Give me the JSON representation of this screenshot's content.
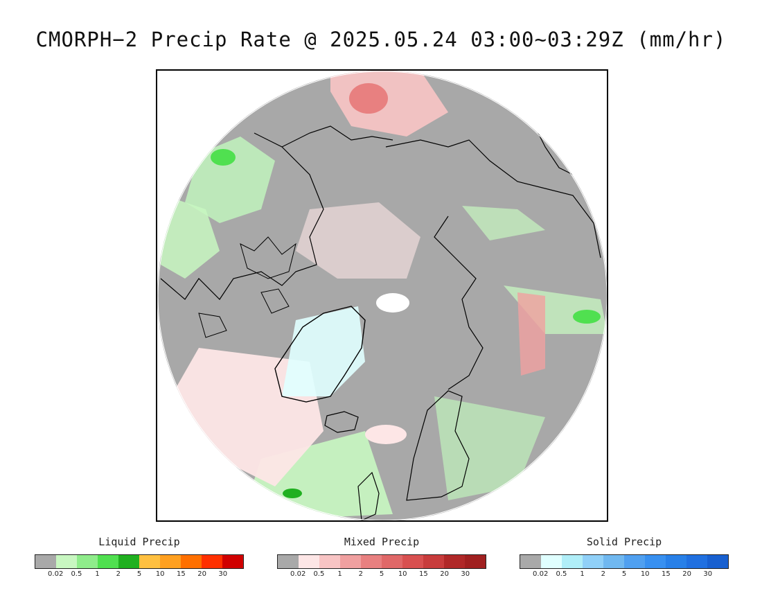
{
  "title": "CMORPH−2 Precip Rate @ 2025.05.24 03:00~03:29Z (mm/hr)",
  "map": {
    "projection": "north polar stereographic",
    "background_color": "#a8a8a8",
    "coastline_color": "#000000"
  },
  "legends": [
    {
      "title": "Liquid Precip",
      "colors": [
        "#a9a9a9",
        "#c8f7c1",
        "#8fec8b",
        "#50e050",
        "#20b020",
        "#ffc040",
        "#ffa020",
        "#ff7000",
        "#ff3000",
        "#d00000"
      ],
      "ticks": [
        "0.02",
        "0.5",
        "1",
        "2",
        "5",
        "10",
        "15",
        "20",
        "30"
      ]
    },
    {
      "title": "Mixed Precip",
      "colors": [
        "#a9a9a9",
        "#fde6e6",
        "#f8c4c4",
        "#f0a0a0",
        "#e88080",
        "#e06868",
        "#d85050",
        "#c83c3c",
        "#b02828",
        "#a02020"
      ],
      "ticks": [
        "0.02",
        "0.5",
        "1",
        "2",
        "5",
        "10",
        "15",
        "20",
        "30"
      ]
    },
    {
      "title": "Solid Precip",
      "colors": [
        "#a9a9a9",
        "#e0ffff",
        "#b0eef8",
        "#90d0f8",
        "#70b8f0",
        "#50a0f0",
        "#3890f0",
        "#2880e8",
        "#2070e0",
        "#1860d0"
      ],
      "ticks": [
        "0.02",
        "0.5",
        "1",
        "2",
        "5",
        "10",
        "15",
        "20",
        "30"
      ]
    }
  ]
}
